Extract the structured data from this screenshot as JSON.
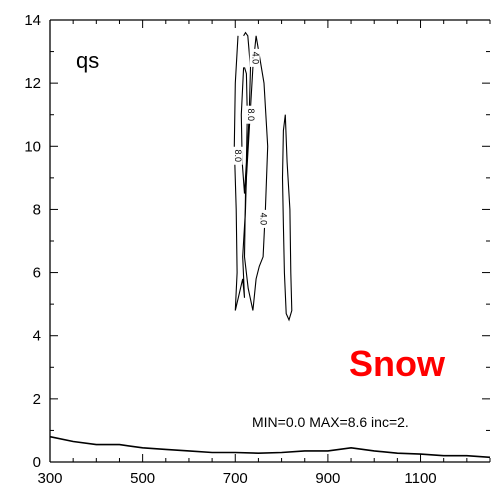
{
  "chart_data": {
    "type": "contour",
    "panel_label": "qs",
    "field_label": "Snow",
    "field_label_color": "#ff0000",
    "stats_text": "MIN=0.0 MAX=8.6 inc=2.",
    "xlim": [
      300,
      1250
    ],
    "ylim": [
      0,
      14
    ],
    "x_ticks": [
      300,
      500,
      700,
      900,
      1100
    ],
    "x_tick_labels": [
      "300",
      "500",
      "700",
      "900",
      "1100"
    ],
    "y_ticks": [
      0,
      2,
      4,
      6,
      8,
      10,
      12,
      14
    ],
    "y_tick_labels": [
      "0",
      "2",
      "4",
      "6",
      "8",
      "10",
      "12",
      "14"
    ],
    "contour_labels": [
      {
        "text": "4.0",
        "x": 742,
        "y": 12.8
      },
      {
        "text": "8.0",
        "x": 733,
        "y": 11.0
      },
      {
        "text": "8.0",
        "x": 705,
        "y": 9.7
      },
      {
        "text": "4.0",
        "x": 760,
        "y": 7.7
      }
    ],
    "terrain": {
      "x": [
        300,
        350,
        400,
        450,
        500,
        550,
        600,
        650,
        700,
        750,
        800,
        850,
        900,
        950,
        1000,
        1050,
        1100,
        1150,
        1200,
        1250
      ],
      "y": [
        0.8,
        0.65,
        0.55,
        0.55,
        0.45,
        0.4,
        0.35,
        0.3,
        0.3,
        0.28,
        0.3,
        0.35,
        0.35,
        0.45,
        0.35,
        0.28,
        0.25,
        0.2,
        0.2,
        0.15
      ]
    },
    "contours": [
      {
        "level": 4.0,
        "x": [
          706,
          700,
          698,
          702,
          704,
          700,
          708,
          716,
          720,
          716,
          722,
          725,
          730,
          733,
          727,
          722,
          718
        ],
        "y": [
          13.5,
          12.0,
          10.0,
          8.0,
          6.0,
          4.8,
          5.3,
          5.8,
          5.2,
          6.5,
          8.0,
          9.5,
          11.0,
          12.5,
          13.5,
          13.6,
          13.5
        ]
      },
      {
        "level": 4.0,
        "x": [
          745,
          762,
          770,
          765,
          760,
          752,
          745,
          738,
          728,
          720,
          722,
          730,
          738,
          745
        ],
        "y": [
          13.5,
          12.0,
          10.0,
          8.0,
          6.5,
          6.2,
          5.8,
          4.8,
          5.5,
          6.5,
          8.5,
          10.5,
          12.5,
          13.5
        ]
      },
      {
        "level": 8.0,
        "x": [
          718,
          713,
          715,
          720,
          724,
          726,
          724,
          720
        ],
        "y": [
          12.5,
          11.0,
          9.5,
          8.5,
          9.5,
          11.0,
          12.3,
          12.5
        ]
      },
      {
        "level": 4.0,
        "x": [
          808,
          812,
          818,
          820,
          822,
          816,
          810,
          806,
          804,
          802,
          804,
          808
        ],
        "y": [
          11.0,
          9.5,
          8.0,
          6.0,
          4.8,
          4.5,
          4.7,
          6.0,
          7.5,
          9.0,
          10.5,
          11.0
        ]
      }
    ]
  }
}
